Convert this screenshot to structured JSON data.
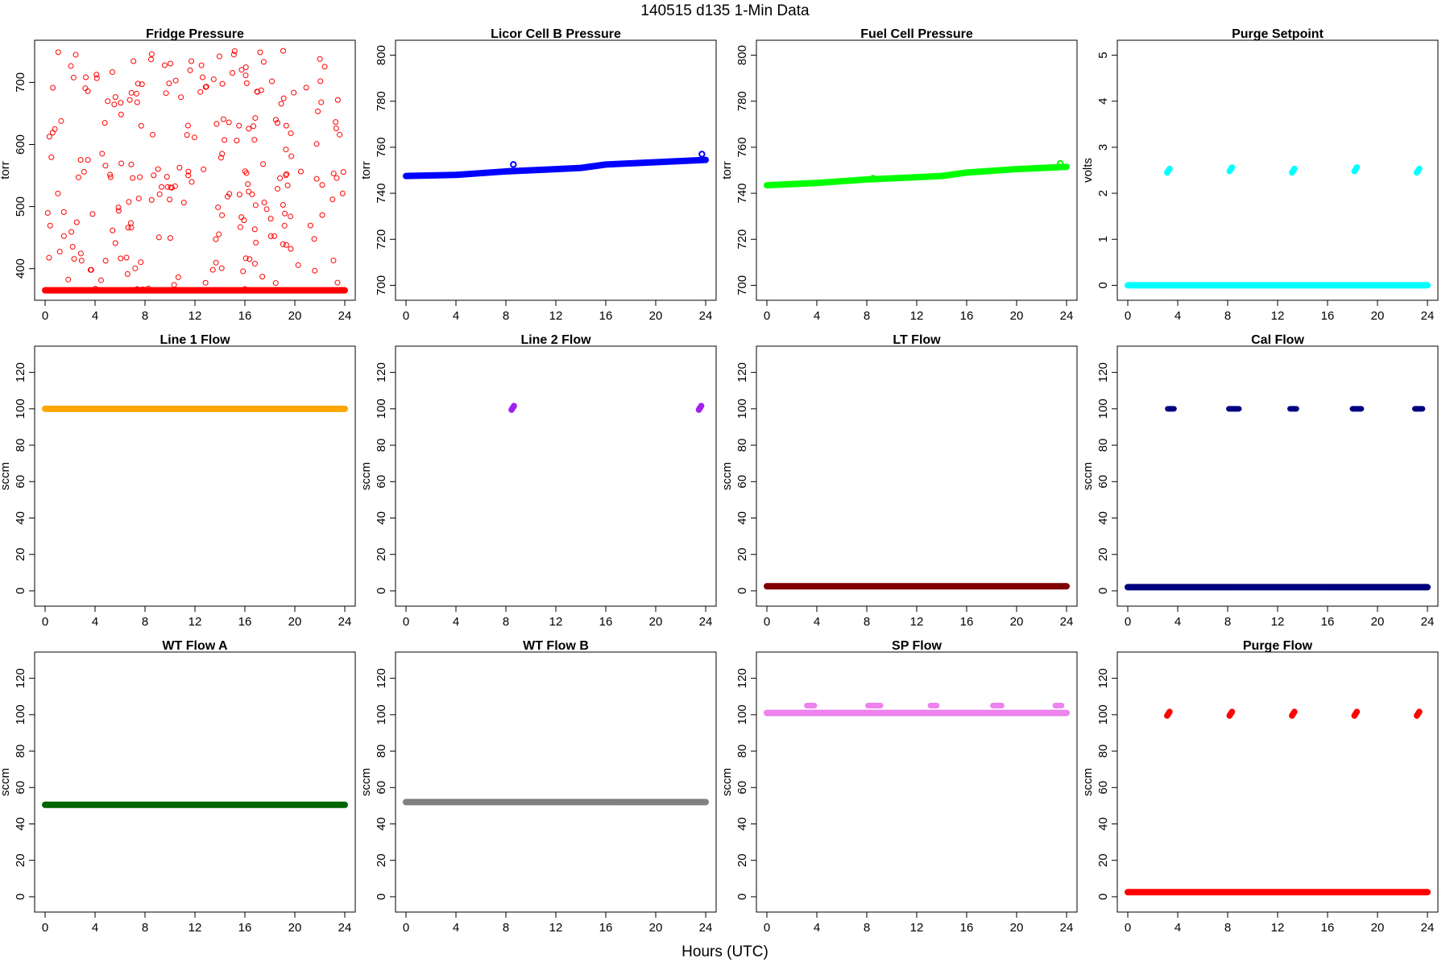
{
  "figure": {
    "title": "140515   d135   1-Min Data",
    "xlabel": "Hours (UTC)"
  },
  "chart_data": [
    {
      "type": "scatter",
      "title": "Fridge Pressure",
      "ylabel": "torr",
      "xlim": [
        0,
        24
      ],
      "ylim": [
        362,
        755
      ],
      "yticks": [
        400,
        500,
        600,
        700
      ],
      "xticks": [
        0,
        4,
        8,
        12,
        16,
        20,
        24
      ],
      "color": "#ff0000",
      "series": [
        {
          "baseline": 365,
          "baseline_from": 0,
          "baseline_to": 24,
          "scatter_range": [
            365,
            752
          ],
          "scatter_count": 230,
          "marker": "open-circle"
        }
      ]
    },
    {
      "type": "scatter",
      "title": "Licor Cell B Pressure",
      "ylabel": "torr",
      "xlim": [
        0,
        24
      ],
      "ylim": [
        697,
        803
      ],
      "yticks": [
        700,
        720,
        740,
        760,
        780,
        800
      ],
      "xticks": [
        0,
        4,
        8,
        12,
        16,
        20,
        24
      ],
      "color": "#0000ff",
      "series": [
        {
          "line": [
            [
              0,
              747.5
            ],
            [
              4,
              748
            ],
            [
              8,
              749.5
            ],
            [
              12,
              750.5
            ],
            [
              14,
              751
            ],
            [
              16,
              752.5
            ],
            [
              20,
              753.5
            ],
            [
              24,
              754.5
            ]
          ],
          "outliers": [
            [
              8.6,
              752.5
            ],
            [
              23.7,
              757
            ]
          ]
        }
      ]
    },
    {
      "type": "scatter",
      "title": "Fuel Cell Pressure",
      "ylabel": "torr",
      "xlim": [
        0,
        24
      ],
      "ylim": [
        697,
        803
      ],
      "yticks": [
        700,
        720,
        740,
        760,
        780,
        800
      ],
      "xticks": [
        0,
        4,
        8,
        12,
        16,
        20,
        24
      ],
      "color": "#00ff00",
      "series": [
        {
          "line": [
            [
              0,
              743.5
            ],
            [
              4,
              744.5
            ],
            [
              8,
              746
            ],
            [
              12,
              747
            ],
            [
              14,
              747.5
            ],
            [
              16,
              749
            ],
            [
              20,
              750.5
            ],
            [
              24,
              751.5
            ]
          ],
          "outliers": [
            [
              8.5,
              746.5
            ],
            [
              23.5,
              753
            ]
          ]
        }
      ]
    },
    {
      "type": "scatter",
      "title": "Purge Setpoint",
      "ylabel": "volts",
      "xlim": [
        0,
        24
      ],
      "ylim": [
        -0.15,
        5.15
      ],
      "yticks": [
        0,
        1,
        2,
        3,
        4,
        5
      ],
      "xticks": [
        0,
        4,
        8,
        12,
        16,
        20,
        24
      ],
      "color": "#00ffff",
      "series": [
        {
          "baseline": 0,
          "baseline_from": 0,
          "baseline_to": 24,
          "clusters": [
            {
              "x": 3.2,
              "y": 2.47
            },
            {
              "x": 8.2,
              "y": 2.5
            },
            {
              "x": 13.2,
              "y": 2.47
            },
            {
              "x": 18.2,
              "y": 2.5
            },
            {
              "x": 23.2,
              "y": 2.47
            }
          ]
        }
      ]
    },
    {
      "type": "scatter",
      "title": "Line 1 Flow",
      "ylabel": "sccm",
      "xlim": [
        0,
        24
      ],
      "ylim": [
        -4,
        130
      ],
      "yticks": [
        0,
        20,
        40,
        60,
        80,
        100,
        120
      ],
      "xticks": [
        0,
        4,
        8,
        12,
        16,
        20,
        24
      ],
      "color": "#ffa500",
      "series": [
        {
          "baseline": 100,
          "baseline_from": 0,
          "baseline_to": 24
        }
      ]
    },
    {
      "type": "scatter",
      "title": "Line 2 Flow",
      "ylabel": "sccm",
      "xlim": [
        0,
        24
      ],
      "ylim": [
        -4,
        130
      ],
      "yticks": [
        0,
        20,
        40,
        60,
        80,
        100,
        120
      ],
      "xticks": [
        0,
        4,
        8,
        12,
        16,
        20,
        24
      ],
      "color": "#a020f0",
      "series": [
        {
          "clusters": [
            {
              "x": 8.5,
              "y": 100
            },
            {
              "x": 23.5,
              "y": 100
            }
          ]
        }
      ]
    },
    {
      "type": "scatter",
      "title": "LT Flow",
      "ylabel": "sccm",
      "xlim": [
        0,
        24
      ],
      "ylim": [
        -4,
        130
      ],
      "yticks": [
        0,
        20,
        40,
        60,
        80,
        100,
        120
      ],
      "xticks": [
        0,
        4,
        8,
        12,
        16,
        20,
        24
      ],
      "color": "#800000",
      "series": [
        {
          "baseline": 2.5,
          "baseline_from": 0,
          "baseline_to": 24
        }
      ]
    },
    {
      "type": "scatter",
      "title": "Cal Flow",
      "ylabel": "sccm",
      "xlim": [
        0,
        24
      ],
      "ylim": [
        -4,
        130
      ],
      "yticks": [
        0,
        20,
        40,
        60,
        80,
        100,
        120
      ],
      "xticks": [
        0,
        4,
        8,
        12,
        16,
        20,
        24
      ],
      "color": "#000080",
      "series": [
        {
          "baseline": 2,
          "baseline_from": 0,
          "baseline_to": 24,
          "segments": [
            [
              3.2,
              3.7
            ],
            [
              8.1,
              8.9
            ],
            [
              13.0,
              13.5
            ],
            [
              18.0,
              18.7
            ],
            [
              23.0,
              23.6
            ]
          ],
          "segment_y": 100
        }
      ]
    },
    {
      "type": "scatter",
      "title": "WT Flow A",
      "ylabel": "sccm",
      "xlim": [
        0,
        24
      ],
      "ylim": [
        -4,
        130
      ],
      "yticks": [
        0,
        20,
        40,
        60,
        80,
        100,
        120
      ],
      "xticks": [
        0,
        4,
        8,
        12,
        16,
        20,
        24
      ],
      "color": "#006400",
      "series": [
        {
          "baseline": 50.5,
          "baseline_from": 0,
          "baseline_to": 24
        }
      ]
    },
    {
      "type": "scatter",
      "title": "WT Flow B",
      "ylabel": "sccm",
      "xlim": [
        0,
        24
      ],
      "ylim": [
        -4,
        130
      ],
      "yticks": [
        0,
        20,
        40,
        60,
        80,
        100,
        120
      ],
      "xticks": [
        0,
        4,
        8,
        12,
        16,
        20,
        24
      ],
      "color": "#808080",
      "series": [
        {
          "baseline": 52,
          "baseline_from": 0,
          "baseline_to": 24
        }
      ]
    },
    {
      "type": "scatter",
      "title": "SP Flow",
      "ylabel": "sccm",
      "xlim": [
        0,
        24
      ],
      "ylim": [
        -4,
        130
      ],
      "yticks": [
        0,
        20,
        40,
        60,
        80,
        100,
        120
      ],
      "xticks": [
        0,
        4,
        8,
        12,
        16,
        20,
        24
      ],
      "color": "#ee82ee",
      "series": [
        {
          "baseline": 101,
          "baseline_from": 0,
          "baseline_to": 24,
          "segments": [
            [
              3.2,
              3.8
            ],
            [
              8.1,
              9.1
            ],
            [
              13.1,
              13.6
            ],
            [
              18.1,
              18.8
            ],
            [
              23.1,
              23.6
            ]
          ],
          "segment_y": 105
        }
      ]
    },
    {
      "type": "scatter",
      "title": "Purge Flow",
      "ylabel": "sccm",
      "xlim": [
        0,
        24
      ],
      "ylim": [
        -4,
        130
      ],
      "yticks": [
        0,
        20,
        40,
        60,
        80,
        100,
        120
      ],
      "xticks": [
        0,
        4,
        8,
        12,
        16,
        20,
        24
      ],
      "color": "#ff0000",
      "series": [
        {
          "baseline": 2.5,
          "baseline_from": 0,
          "baseline_to": 24,
          "clusters": [
            {
              "x": 3.2,
              "y": 100
            },
            {
              "x": 8.2,
              "y": 100
            },
            {
              "x": 13.2,
              "y": 100
            },
            {
              "x": 18.2,
              "y": 100
            },
            {
              "x": 23.2,
              "y": 100
            }
          ]
        }
      ]
    }
  ]
}
